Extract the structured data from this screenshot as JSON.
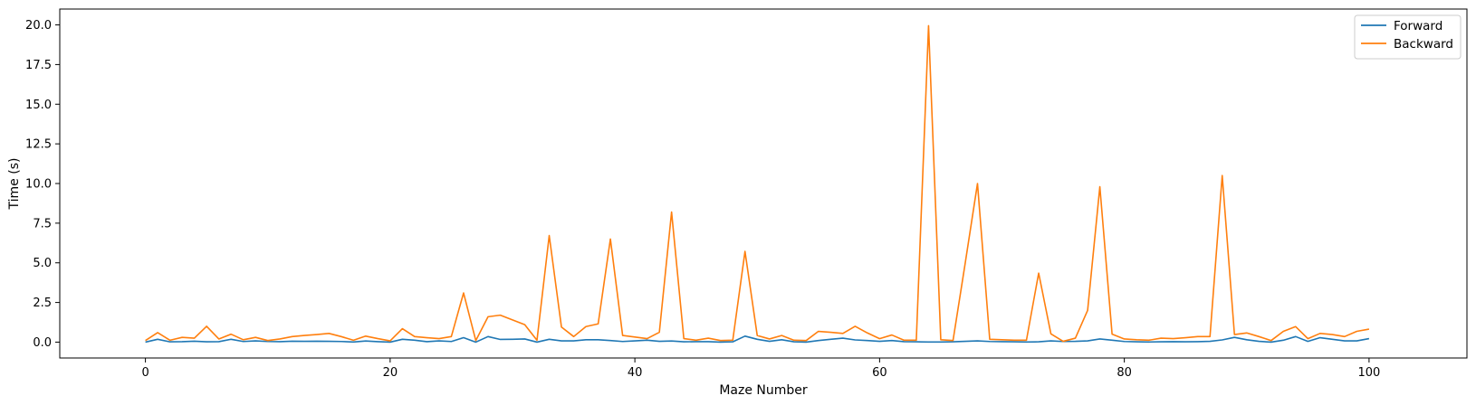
{
  "chart_data": {
    "type": "line",
    "title": "",
    "xlabel": "Maze Number",
    "ylabel": "Time (s)",
    "xlim": [
      -7,
      108
    ],
    "ylim": [
      -1.0,
      21.0
    ],
    "xticks": [
      0,
      20,
      40,
      60,
      80,
      100
    ],
    "xtick_labels": [
      "0",
      "20",
      "40",
      "60",
      "80",
      "100"
    ],
    "yticks": [
      0,
      2.5,
      5,
      7.5,
      10,
      12.5,
      15,
      17.5,
      20
    ],
    "ytick_labels": [
      "0.0",
      "2.5",
      "5.0",
      "7.5",
      "10.0",
      "12.5",
      "15.0",
      "17.5",
      "20.0"
    ],
    "grid": false,
    "legend_position": "top-right",
    "series": [
      {
        "name": "Forward",
        "color": "#1f77b4",
        "x": [
          0,
          1,
          2,
          3,
          4,
          5,
          6,
          7,
          8,
          9,
          10,
          11,
          12,
          13,
          14,
          15,
          16,
          17,
          18,
          19,
          20,
          21,
          22,
          23,
          24,
          25,
          26,
          27,
          28,
          29,
          30,
          31,
          32,
          33,
          34,
          35,
          36,
          37,
          38,
          39,
          40,
          41,
          42,
          43,
          44,
          45,
          46,
          47,
          48,
          49,
          50,
          51,
          52,
          53,
          54,
          55,
          56,
          57,
          58,
          59,
          60,
          61,
          62,
          63,
          64,
          65,
          66,
          67,
          68,
          69,
          70,
          71,
          72,
          73,
          74,
          75,
          76,
          77,
          78,
          79,
          80,
          81,
          82,
          83,
          84,
          85,
          86,
          87,
          88,
          89,
          90,
          91,
          92,
          93,
          94,
          95,
          96,
          97,
          98,
          99,
          100
        ],
        "values": [
          0.0,
          0.18,
          0.02,
          0.03,
          0.06,
          0.02,
          0.03,
          0.18,
          0.04,
          0.08,
          0.04,
          0.03,
          0.06,
          0.05,
          0.06,
          0.05,
          0.04,
          0.01,
          0.07,
          0.03,
          0.0,
          0.18,
          0.12,
          0.03,
          0.08,
          0.04,
          0.28,
          0.0,
          0.35,
          0.17,
          0.18,
          0.2,
          0.0,
          0.18,
          0.08,
          0.08,
          0.15,
          0.15,
          0.1,
          0.04,
          0.08,
          0.12,
          0.05,
          0.07,
          0.02,
          0.03,
          0.03,
          0.0,
          0.02,
          0.38,
          0.18,
          0.05,
          0.15,
          0.02,
          0.0,
          0.1,
          0.18,
          0.25,
          0.14,
          0.1,
          0.05,
          0.1,
          0.03,
          0.02,
          0.01,
          0.01,
          0.02,
          0.05,
          0.08,
          0.04,
          0.03,
          0.02,
          0.01,
          0.02,
          0.08,
          0.04,
          0.05,
          0.08,
          0.2,
          0.12,
          0.04,
          0.02,
          0.01,
          0.02,
          0.03,
          0.02,
          0.03,
          0.05,
          0.14,
          0.3,
          0.15,
          0.05,
          0.0,
          0.12,
          0.35,
          0.05,
          0.28,
          0.18,
          0.08,
          0.08,
          0.22
        ]
      },
      {
        "name": "Backward",
        "color": "#ff7f0e",
        "x": [
          0,
          1,
          2,
          3,
          4,
          5,
          6,
          7,
          8,
          9,
          10,
          11,
          12,
          13,
          14,
          15,
          16,
          17,
          18,
          19,
          20,
          21,
          22,
          23,
          24,
          25,
          26,
          27,
          28,
          29,
          30,
          31,
          32,
          33,
          34,
          35,
          36,
          37,
          38,
          39,
          40,
          41,
          42,
          43,
          44,
          45,
          46,
          47,
          48,
          49,
          50,
          51,
          52,
          53,
          54,
          55,
          56,
          57,
          58,
          59,
          60,
          61,
          62,
          63,
          64,
          65,
          66,
          67,
          68,
          69,
          70,
          71,
          72,
          73,
          74,
          75,
          76,
          77,
          78,
          79,
          80,
          81,
          82,
          83,
          84,
          85,
          86,
          87,
          88,
          89,
          90,
          91,
          92,
          93,
          94,
          95,
          96,
          97,
          98,
          99,
          100
        ],
        "values": [
          0.1,
          0.6,
          0.12,
          0.3,
          0.25,
          1.0,
          0.2,
          0.5,
          0.15,
          0.3,
          0.1,
          0.2,
          0.35,
          0.42,
          0.48,
          0.55,
          0.35,
          0.12,
          0.38,
          0.22,
          0.08,
          0.85,
          0.35,
          0.28,
          0.22,
          0.35,
          3.1,
          0.1,
          1.6,
          1.7,
          1.4,
          1.1,
          0.12,
          6.72,
          0.95,
          0.35,
          0.98,
          1.15,
          6.5,
          0.42,
          0.32,
          0.22,
          0.62,
          8.2,
          0.22,
          0.12,
          0.25,
          0.1,
          0.12,
          5.72,
          0.42,
          0.2,
          0.42,
          0.12,
          0.1,
          0.68,
          0.62,
          0.55,
          1.0,
          0.58,
          0.22,
          0.45,
          0.12,
          0.12,
          19.95,
          0.15,
          0.1,
          5.0,
          10.0,
          0.18,
          0.15,
          0.12,
          0.12,
          4.35,
          0.52,
          0.05,
          0.25,
          2.0,
          9.8,
          0.5,
          0.2,
          0.15,
          0.12,
          0.25,
          0.22,
          0.28,
          0.35,
          0.35,
          10.5,
          0.48,
          0.58,
          0.35,
          0.1,
          0.68,
          0.98,
          0.22,
          0.55,
          0.48,
          0.35,
          0.68,
          0.82
        ]
      }
    ]
  }
}
